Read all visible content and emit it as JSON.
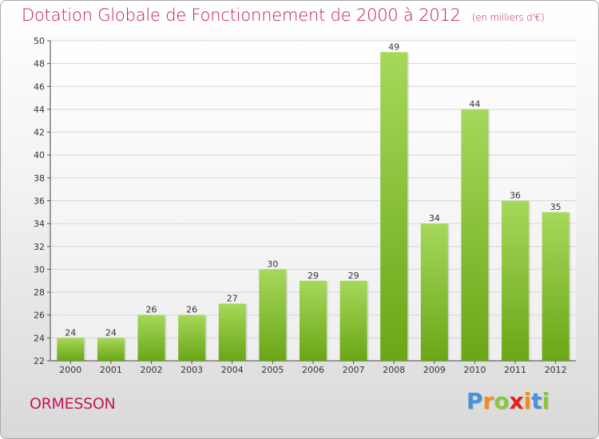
{
  "header": {
    "title": "Dotation Globale de Fonctionnement de 2000 à 2012",
    "unit": "(en milliers d'€)"
  },
  "footer": {
    "city": "ORMESSON",
    "brand": [
      "P",
      "r",
      "o",
      "x",
      "i",
      "t",
      "i"
    ]
  },
  "colors": {
    "title": "#c2185b",
    "bar_light": "#a6d85a",
    "bar_dark": "#6aa617",
    "brand_letters": [
      "#4a90d9",
      "#f28c1e",
      "#8cc63f",
      "#e2231a",
      "#f28c1e",
      "#4a90d9",
      "#8cc63f"
    ]
  },
  "chart_data": {
    "type": "bar",
    "categories": [
      "2000",
      "2001",
      "2002",
      "2003",
      "2004",
      "2005",
      "2006",
      "2007",
      "2008",
      "2009",
      "2010",
      "2011",
      "2012"
    ],
    "values": [
      24,
      24,
      26,
      26,
      27,
      30,
      29,
      29,
      49,
      34,
      44,
      36,
      35
    ],
    "ylim": [
      22,
      50
    ],
    "yticks": [
      22,
      24,
      26,
      28,
      30,
      32,
      34,
      36,
      38,
      40,
      42,
      44,
      46,
      48,
      50
    ],
    "grid": true,
    "data_labels": true
  }
}
